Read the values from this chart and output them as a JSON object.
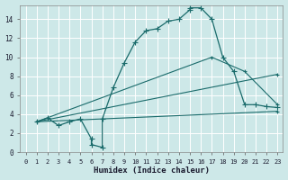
{
  "xlabel": "Humidex (Indice chaleur)",
  "bg_color": "#cde8e8",
  "grid_color": "#b8d8d8",
  "line_color": "#1a6b6b",
  "xlim": [
    -0.5,
    23.5
  ],
  "ylim": [
    0,
    15.5
  ],
  "xticks": [
    0,
    1,
    2,
    3,
    4,
    5,
    6,
    7,
    8,
    9,
    10,
    11,
    12,
    13,
    14,
    15,
    16,
    17,
    18,
    19,
    20,
    21,
    22,
    23
  ],
  "yticks": [
    0,
    2,
    4,
    6,
    8,
    10,
    12,
    14
  ],
  "series_main": {
    "x": [
      1,
      2,
      3,
      4,
      5,
      6,
      6,
      7,
      7,
      8,
      9,
      10,
      11,
      12,
      13,
      14,
      15,
      15,
      16,
      17,
      18,
      19,
      20,
      21,
      22,
      23
    ],
    "y": [
      3.2,
      3.6,
      2.8,
      3.2,
      3.5,
      1.4,
      0.8,
      0.5,
      3.5,
      6.8,
      9.4,
      11.6,
      12.8,
      13.0,
      13.8,
      14.0,
      15.0,
      15.2,
      15.2,
      14.0,
      10.0,
      8.5,
      5.0,
      5.0,
      4.8,
      4.7
    ]
  },
  "series_lines": [
    {
      "x": [
        1,
        17,
        20,
        23
      ],
      "y": [
        3.2,
        10.0,
        8.5,
        5.0
      ]
    },
    {
      "x": [
        1,
        23
      ],
      "y": [
        3.2,
        8.2
      ]
    },
    {
      "x": [
        1,
        23
      ],
      "y": [
        3.2,
        4.3
      ]
    }
  ]
}
